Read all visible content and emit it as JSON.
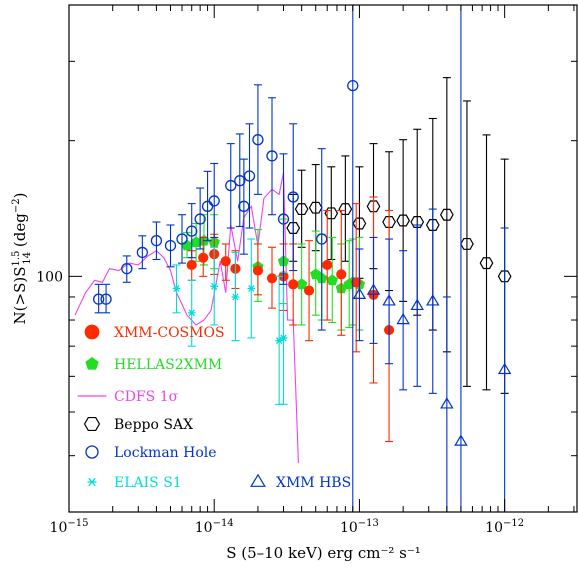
{
  "chart_data": {
    "type": "scatter",
    "xlabel": "S (5–10 keV) erg cm⁻² s⁻¹",
    "ylabel": "N(>S)S¹ᐧ⁵₁₄ (deg⁻²)",
    "ylabel_main": "N(>S)S",
    "ylabel_sup": "1.5",
    "ylabel_sub": "14",
    "ylabel_unit": "(deg",
    "ylabel_unit_sup": "−2",
    "ylabel_close": ")",
    "xscale": "log",
    "yscale": "log",
    "xlim": [
      1e-15,
      3.2e-12
    ],
    "ylim": [
      30,
      400
    ],
    "xticks": [
      {
        "value": 1e-15,
        "base": "10",
        "exp": "−15"
      },
      {
        "value": 1e-14,
        "base": "10",
        "exp": "−14"
      },
      {
        "value": 1e-13,
        "base": "10",
        "exp": "−13"
      },
      {
        "value": 1e-12,
        "base": "10",
        "exp": "−12"
      }
    ],
    "yticks": [
      {
        "value": 100,
        "label": "100"
      }
    ],
    "series": [
      {
        "name": "XMM–COSMOS",
        "label": "XMM-COSMOS",
        "marker": "filled-circle",
        "color": "#ff2a00",
        "points": [
          {
            "x": 7e-15,
            "y": 106,
            "lo": 98,
            "hi": 114
          },
          {
            "x": 8.4e-15,
            "y": 110,
            "lo": 100,
            "hi": 122
          },
          {
            "x": 1e-14,
            "y": 112,
            "lo": 101,
            "hi": 124
          },
          {
            "x": 1.2e-14,
            "y": 108,
            "lo": 98,
            "hi": 118
          },
          {
            "x": 1.4e-14,
            "y": 104,
            "lo": 94,
            "hi": 114
          },
          {
            "x": 2e-14,
            "y": 103,
            "lo": 91,
            "hi": 118
          },
          {
            "x": 2.5e-14,
            "y": 99,
            "lo": 85,
            "hi": 116
          },
          {
            "x": 3e-14,
            "y": 100,
            "lo": 84,
            "hi": 118
          },
          {
            "x": 3.5e-14,
            "y": 96,
            "lo": 78,
            "hi": 118
          },
          {
            "x": 4.5e-14,
            "y": 93,
            "lo": 72,
            "hi": 120
          },
          {
            "x": 6e-14,
            "y": 106,
            "lo": 80,
            "hi": 140
          },
          {
            "x": 7.5e-14,
            "y": 101,
            "lo": 74,
            "hi": 140
          },
          {
            "x": 9.5e-14,
            "y": 97,
            "lo": 68,
            "hi": 145
          },
          {
            "x": 1.25e-13,
            "y": 91,
            "lo": 58,
            "hi": 150
          },
          {
            "x": 1.6e-13,
            "y": 76,
            "lo": 43,
            "hi": 140
          }
        ]
      },
      {
        "name": "HELLAS2XMM",
        "label": "HELLAS2XMM",
        "marker": "filled-pentagon",
        "color": "#22dd22",
        "points": [
          {
            "x": 6.5e-15,
            "y": 117,
            "lo": 110,
            "hi": 125
          },
          {
            "x": 7.5e-15,
            "y": 119,
            "lo": 108,
            "hi": 131
          },
          {
            "x": 8.5e-15,
            "y": 120,
            "lo": 106,
            "hi": 137
          },
          {
            "x": 1e-14,
            "y": 119,
            "lo": 104,
            "hi": 137
          },
          {
            "x": 2e-14,
            "y": 105,
            "lo": 88,
            "hi": 127
          },
          {
            "x": 3e-14,
            "y": 108,
            "lo": 87,
            "hi": 134
          },
          {
            "x": 4e-14,
            "y": 96,
            "lo": 78,
            "hi": 118
          },
          {
            "x": 5e-14,
            "y": 101,
            "lo": 82,
            "hi": 126
          },
          {
            "x": 5.5e-14,
            "y": 99,
            "lo": 80,
            "hi": 124
          },
          {
            "x": 6.5e-14,
            "y": 98,
            "lo": 79,
            "hi": 122
          },
          {
            "x": 7.5e-14,
            "y": 94,
            "lo": 76,
            "hi": 118
          },
          {
            "x": 8.5e-14,
            "y": 96,
            "lo": 77,
            "hi": 120
          },
          {
            "x": 9e-14,
            "y": 97,
            "lo": 78,
            "hi": 121
          },
          {
            "x": 1e-13,
            "y": 96,
            "lo": 76,
            "hi": 122
          }
        ]
      },
      {
        "name": "CDFS 1σ",
        "label": "CDFS  1σ",
        "marker": "line",
        "color": "#ee44ee",
        "points": [
          {
            "x": 1.1e-15,
            "y": 82
          },
          {
            "x": 1.3e-15,
            "y": 92
          },
          {
            "x": 1.5e-15,
            "y": 98
          },
          {
            "x": 1.7e-15,
            "y": 97
          },
          {
            "x": 1.9e-15,
            "y": 104
          },
          {
            "x": 2.2e-15,
            "y": 103
          },
          {
            "x": 2.6e-15,
            "y": 107
          },
          {
            "x": 3e-15,
            "y": 106
          },
          {
            "x": 3.5e-15,
            "y": 111
          },
          {
            "x": 4e-15,
            "y": 114
          },
          {
            "x": 4.5e-15,
            "y": 110
          },
          {
            "x": 5e-15,
            "y": 103
          },
          {
            "x": 5.5e-15,
            "y": 92
          },
          {
            "x": 6.5e-15,
            "y": 82
          },
          {
            "x": 7.5e-15,
            "y": 78
          },
          {
            "x": 8.5e-15,
            "y": 80
          },
          {
            "x": 9.5e-15,
            "y": 84
          },
          {
            "x": 1.1e-14,
            "y": 108
          },
          {
            "x": 1.2e-14,
            "y": 92
          },
          {
            "x": 1.3e-14,
            "y": 130
          },
          {
            "x": 1.45e-14,
            "y": 108
          },
          {
            "x": 1.6e-14,
            "y": 135
          },
          {
            "x": 1.8e-14,
            "y": 143
          },
          {
            "x": 2e-14,
            "y": 117
          },
          {
            "x": 2.2e-14,
            "y": 149
          },
          {
            "x": 2.5e-14,
            "y": 156
          },
          {
            "x": 2.8e-14,
            "y": 152
          },
          {
            "x": 3e-14,
            "y": 170
          },
          {
            "x": 3.2e-14,
            "y": 80
          },
          {
            "x": 3.5e-14,
            "y": 80
          },
          {
            "x": 3.8e-14,
            "y": 38.5
          }
        ]
      },
      {
        "name": "Beppo SAX",
        "label": "Beppo SAX",
        "marker": "open-hexagon",
        "color": "#000000",
        "points": [
          {
            "x": 3.5e-14,
            "y": 128,
            "lo": 108,
            "hi": 152
          },
          {
            "x": 4e-14,
            "y": 141,
            "lo": 116,
            "hi": 172
          },
          {
            "x": 5e-14,
            "y": 142,
            "lo": 114,
            "hi": 177
          },
          {
            "x": 6.4e-14,
            "y": 138,
            "lo": 109,
            "hi": 175
          },
          {
            "x": 8e-14,
            "y": 141,
            "lo": 108,
            "hi": 185
          },
          {
            "x": 1e-13,
            "y": 131,
            "lo": 99,
            "hi": 175
          },
          {
            "x": 1.25e-13,
            "y": 143,
            "lo": 104,
            "hi": 197
          },
          {
            "x": 1.6e-13,
            "y": 132,
            "lo": 93,
            "hi": 189
          },
          {
            "x": 2e-13,
            "y": 133,
            "lo": 88,
            "hi": 201
          },
          {
            "x": 2.5e-13,
            "y": 132,
            "lo": 82,
            "hi": 212
          },
          {
            "x": 3.2e-13,
            "y": 130,
            "lo": 76,
            "hi": 224
          },
          {
            "x": 4e-13,
            "y": 137,
            "lo": 68,
            "hi": 276
          },
          {
            "x": 5.5e-13,
            "y": 118,
            "lo": 57,
            "hi": 245
          },
          {
            "x": 7.5e-13,
            "y": 107,
            "lo": 56,
            "hi": 206
          },
          {
            "x": 1e-12,
            "y": 100,
            "lo": 55,
            "hi": 182
          }
        ]
      },
      {
        "name": "Lockman Hole",
        "label": "Lockman Hole",
        "marker": "open-circle",
        "color": "#0033cc",
        "points": [
          {
            "x": 1.6e-15,
            "y": 89,
            "lo": 83,
            "hi": 96
          },
          {
            "x": 1.8e-15,
            "y": 89,
            "lo": 83,
            "hi": 96
          },
          {
            "x": 2.5e-15,
            "y": 104,
            "lo": 97,
            "hi": 111
          },
          {
            "x": 3.2e-15,
            "y": 113,
            "lo": 104,
            "hi": 123
          },
          {
            "x": 4e-15,
            "y": 120,
            "lo": 109,
            "hi": 132
          },
          {
            "x": 5e-15,
            "y": 117,
            "lo": 105,
            "hi": 130
          },
          {
            "x": 6e-15,
            "y": 121,
            "lo": 107,
            "hi": 137
          },
          {
            "x": 7e-15,
            "y": 126,
            "lo": 110,
            "hi": 145
          },
          {
            "x": 8e-15,
            "y": 134,
            "lo": 115,
            "hi": 157
          },
          {
            "x": 9e-15,
            "y": 143,
            "lo": 120,
            "hi": 171
          },
          {
            "x": 1e-14,
            "y": 147,
            "lo": 122,
            "hi": 178
          },
          {
            "x": 1.3e-14,
            "y": 159,
            "lo": 128,
            "hi": 197
          },
          {
            "x": 1.5e-14,
            "y": 163,
            "lo": 129,
            "hi": 207
          },
          {
            "x": 1.6e-14,
            "y": 143,
            "lo": 112,
            "hi": 182
          },
          {
            "x": 1.75e-14,
            "y": 167,
            "lo": 128,
            "hi": 218
          },
          {
            "x": 2e-14,
            "y": 201,
            "lo": 152,
            "hi": 266
          },
          {
            "x": 2.5e-14,
            "y": 185,
            "lo": 137,
            "hi": 249
          },
          {
            "x": 3e-14,
            "y": 134,
            "lo": 96,
            "hi": 187
          },
          {
            "x": 3.5e-14,
            "y": 150,
            "lo": 103,
            "hi": 218
          },
          {
            "x": 5.5e-14,
            "y": 121,
            "lo": 76,
            "hi": 192
          },
          {
            "x": 9e-14,
            "y": 265,
            "lo": 30,
            "hi": 400
          }
        ]
      },
      {
        "name": "ELAIS S1",
        "label": "ELAIS S1",
        "marker": "open-star",
        "color": "#00dddd",
        "points": [
          {
            "x": 5.5e-15,
            "y": 94,
            "lo": 83,
            "hi": 106
          },
          {
            "x": 7e-15,
            "y": 83,
            "lo": 70,
            "hi": 98
          },
          {
            "x": 1e-14,
            "y": 95,
            "lo": 78,
            "hi": 116
          },
          {
            "x": 1.4e-14,
            "y": 90,
            "lo": 72,
            "hi": 113
          },
          {
            "x": 1.8e-14,
            "y": 94,
            "lo": 73,
            "hi": 121
          },
          {
            "x": 2.8e-14,
            "y": 72,
            "lo": 52,
            "hi": 100
          },
          {
            "x": 3e-14,
            "y": 73,
            "lo": 52,
            "hi": 102
          }
        ]
      },
      {
        "name": "XMM HBS",
        "label": "XMM HBS",
        "marker": "open-triangle",
        "color": "#0033cc",
        "points": [
          {
            "x": 1e-13,
            "y": 91,
            "lo": 72,
            "hi": 115
          },
          {
            "x": 1.25e-13,
            "y": 93,
            "lo": 71,
            "hi": 122
          },
          {
            "x": 1.6e-13,
            "y": 88,
            "lo": 64,
            "hi": 121
          },
          {
            "x": 2e-13,
            "y": 80,
            "lo": 56,
            "hi": 114
          },
          {
            "x": 2.5e-13,
            "y": 86,
            "lo": 57,
            "hi": 130
          },
          {
            "x": 3.2e-13,
            "y": 88,
            "lo": 55,
            "hi": 141
          },
          {
            "x": 4e-13,
            "y": 52,
            "lo": 30,
            "hi": 90
          },
          {
            "x": 5e-13,
            "y": 43,
            "lo": 30,
            "hi": 400
          },
          {
            "x": 1e-12,
            "y": 62,
            "lo": 30,
            "hi": 128
          }
        ]
      }
    ],
    "legend": [
      {
        "series": 0,
        "column": 0,
        "row": 0
      },
      {
        "series": 1,
        "column": 0,
        "row": 1
      },
      {
        "series": 2,
        "column": 0,
        "row": 2
      },
      {
        "series": 3,
        "column": 0,
        "row": 3
      },
      {
        "series": 4,
        "column": 0,
        "row": 4
      },
      {
        "series": 5,
        "column": 0,
        "row": 5
      },
      {
        "series": 6,
        "column": 1,
        "row": 5
      }
    ]
  }
}
